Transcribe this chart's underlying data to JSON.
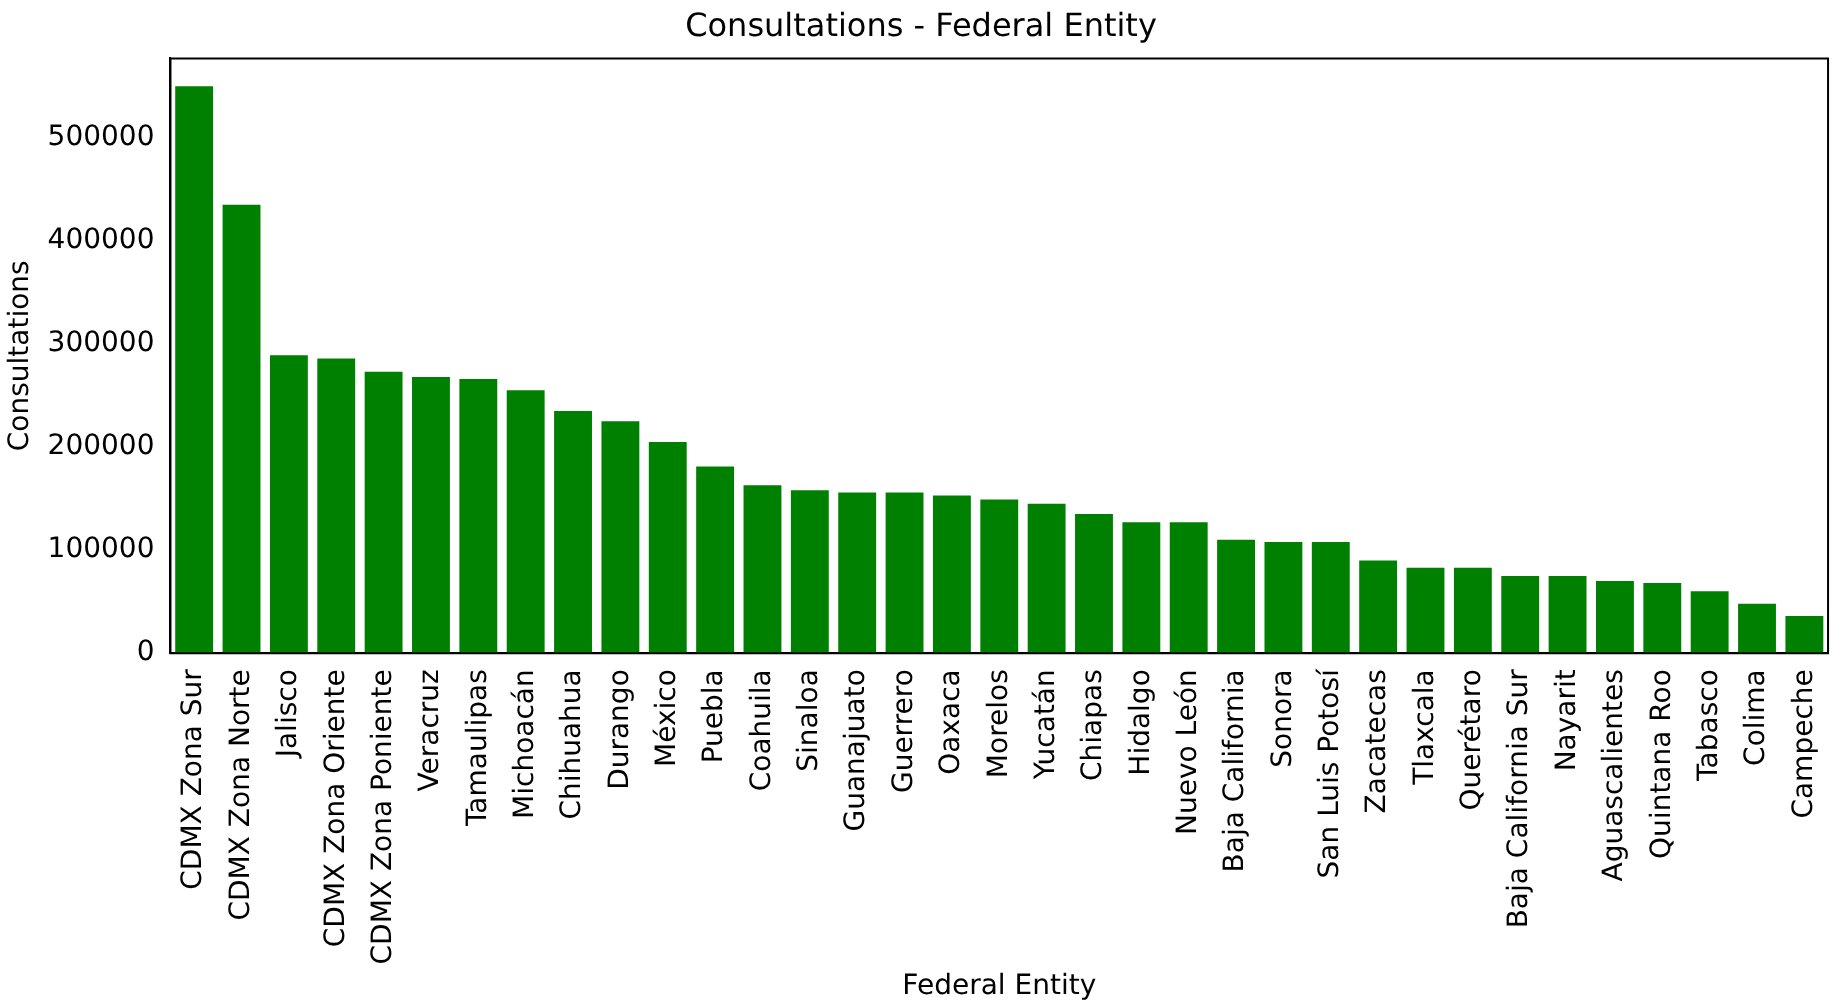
{
  "chart_data": {
    "type": "bar",
    "title": "Consultations - Federal Entity",
    "xlabel": "Federal Entity",
    "ylabel": "Consultations",
    "categories": [
      "CDMX Zona Sur",
      "CDMX Zona Norte",
      "Jalisco",
      "CDMX Zona Oriente",
      "CDMX Zona Poniente",
      "Veracruz",
      "Tamaulipas",
      "Michoacán",
      "Chihuahua",
      "Durango",
      "México",
      "Puebla",
      "Coahuila",
      "Sinaloa",
      "Guanajuato",
      "Guerrero",
      "Oaxaca",
      "Morelos",
      "Yucatán",
      "Chiapas",
      "Hidalgo",
      "Nuevo León",
      "Baja California",
      "Sonora",
      "San Luis Potosí",
      "Zacatecas",
      "Tlaxcala",
      "Querétaro",
      "Baja California Sur",
      "Nayarit",
      "Aguascalientes",
      "Quintana Roo",
      "Tabasco",
      "Colima",
      "Campeche"
    ],
    "values": [
      550000,
      435000,
      289000,
      286000,
      273000,
      268000,
      266000,
      255000,
      235000,
      225000,
      205000,
      181000,
      163000,
      158000,
      156000,
      156000,
      153000,
      149000,
      145000,
      135000,
      127000,
      127000,
      110000,
      108000,
      108000,
      90000,
      83000,
      83000,
      75000,
      75000,
      70000,
      68000,
      60000,
      48000,
      36000
    ],
    "color": "#008000",
    "ylim": [
      0,
      577000
    ],
    "yticks": [
      0,
      100000,
      200000,
      300000,
      400000,
      500000
    ],
    "grid": false,
    "legend": false
  }
}
